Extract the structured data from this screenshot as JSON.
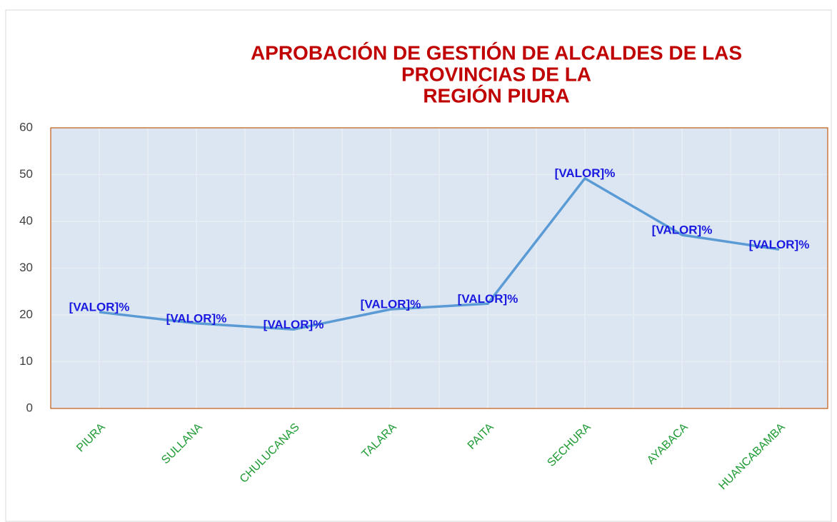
{
  "chart_data": {
    "type": "line",
    "title": [
      "APROBACIÓN DE GESTIÓN DE ALCALDES DE LAS",
      "PROVINCIAS DE LA",
      "REGIÓN PIURA"
    ],
    "categories": [
      "PIURA",
      "SULLANA",
      "CHULUCANAS",
      "TALARA",
      "PAITA",
      "SECHURA",
      "AYABACA",
      "HUANCABAMBA"
    ],
    "values": [
      20.6,
      18.2,
      16.9,
      21.2,
      22.4,
      49.2,
      37.1,
      34.0
    ],
    "value_labels": [
      "[VALOR]%",
      "[VALOR]%",
      "[VALOR]%",
      "[VALOR]%",
      "[VALOR]%",
      "[VALOR]%",
      "[VALOR]%",
      "[VALOR]%"
    ],
    "color": "#5b9bd5",
    "ylim": [
      0,
      60
    ],
    "yticks": [
      0,
      10,
      20,
      30,
      40,
      50,
      60
    ],
    "grid": true
  }
}
